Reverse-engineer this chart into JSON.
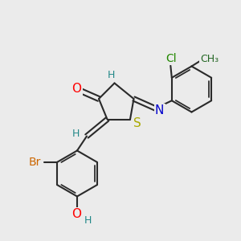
{
  "bg_color": "#ebebeb",
  "bond_color": "#2a2a2a",
  "bond_width": 1.5,
  "atom_colors": {
    "O": "#ff0000",
    "N": "#0000cc",
    "S": "#aaaa00",
    "Br": "#cc6600",
    "Cl": "#228800",
    "H": "#228888",
    "CH3": "#226622",
    "C": "#2a2a2a"
  },
  "font_size": 10,
  "fig_size": [
    3.0,
    3.0
  ],
  "dpi": 100
}
